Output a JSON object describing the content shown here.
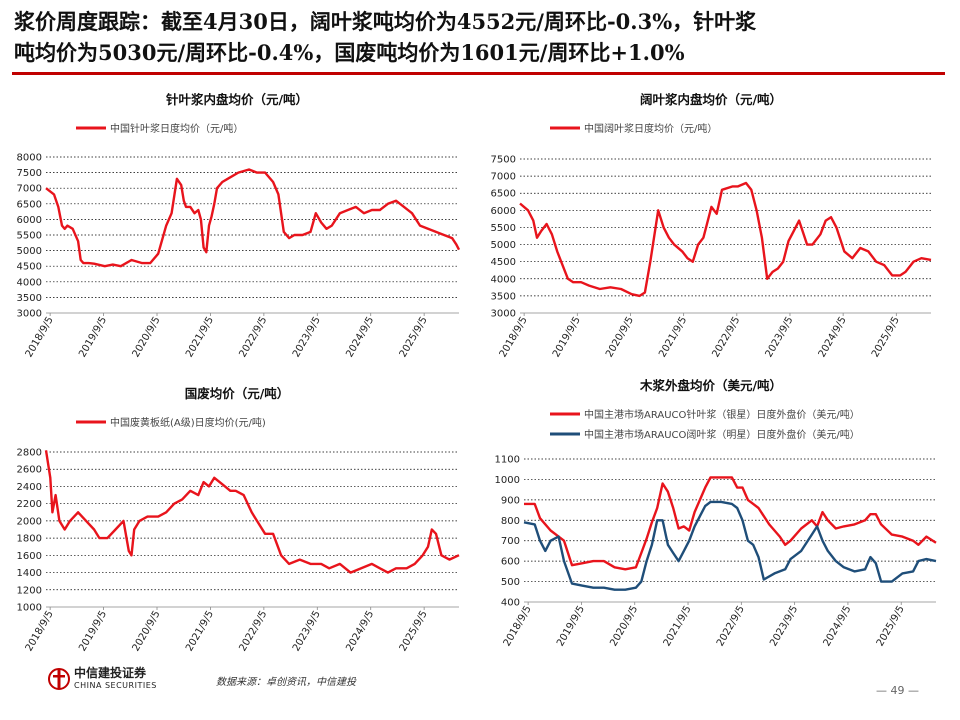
{
  "headline": {
    "line1": "浆价周度跟踪：截至4月30日，阔叶浆吨均价为4552元/周环比-0.3%，针叶浆",
    "line2": "吨均价为5030元/周环比-0.4%，国废吨均价为1601元/周环比+1.0%"
  },
  "footer": {
    "logo_cn": "中信建投证券",
    "logo_en": "CHINA SECURITIES",
    "source": "数据来源：卓创资讯，中信建投",
    "page": "— 49 —"
  },
  "colors": {
    "red": "#e8141c",
    "navy": "#1f4e79",
    "grid": "#000000",
    "accent": "#c00000"
  },
  "chart_data": [
    {
      "type": "line",
      "title": "针叶浆内盘均价（元/吨）",
      "xlabel": "",
      "ylabel": "",
      "ylim": [
        3000,
        8000
      ],
      "yticks": [
        3000,
        3500,
        4000,
        4500,
        5000,
        5500,
        6000,
        6500,
        7000,
        7500,
        8000
      ],
      "xticks": [
        "2018/9/5",
        "2019/9/5",
        "2020/9/5",
        "2021/9/5",
        "2022/9/5",
        "2023/9/5",
        "2024/9/5",
        "2025/9/5"
      ],
      "xlim": [
        2018.6,
        2026.33
      ],
      "grid": "horizontal dotted",
      "legend": "top-left",
      "series": [
        {
          "name": "中国针叶浆日度均价（元/吨）",
          "color": "#e8141c",
          "x": [
            2018.6,
            2018.75,
            2018.83,
            2018.9,
            2018.95,
            2019.0,
            2019.1,
            2019.2,
            2019.25,
            2019.3,
            2019.4,
            2019.5,
            2019.7,
            2019.85,
            2020.0,
            2020.2,
            2020.4,
            2020.55,
            2020.7,
            2020.85,
            2020.95,
            2021.05,
            2021.13,
            2021.18,
            2021.22,
            2021.3,
            2021.38,
            2021.45,
            2021.5,
            2021.55,
            2021.6,
            2021.65,
            2021.7,
            2021.75,
            2021.8,
            2021.9,
            2022.0,
            2022.2,
            2022.4,
            2022.55,
            2022.7,
            2022.85,
            2022.95,
            2023.05,
            2023.15,
            2023.25,
            2023.4,
            2023.55,
            2023.65,
            2023.75,
            2023.85,
            2023.95,
            2024.1,
            2024.25,
            2024.4,
            2024.55,
            2024.7,
            2024.85,
            2025.0,
            2025.15,
            2025.3,
            2025.45,
            2025.6,
            2025.75,
            2025.9,
            2026.05,
            2026.2,
            2026.28,
            2026.33
          ],
          "values": [
            7000,
            6800,
            6400,
            5800,
            5700,
            5800,
            5700,
            5300,
            4700,
            4600,
            4600,
            4580,
            4500,
            4550,
            4500,
            4700,
            4600,
            4600,
            4900,
            5800,
            6200,
            7300,
            7100,
            6600,
            6400,
            6400,
            6200,
            6300,
            6000,
            5100,
            4950,
            5800,
            6100,
            6500,
            7000,
            7200,
            7300,
            7500,
            7600,
            7500,
            7500,
            7200,
            6800,
            5600,
            5400,
            5500,
            5500,
            5600,
            6200,
            5900,
            5700,
            5800,
            6200,
            6300,
            6400,
            6200,
            6300,
            6300,
            6500,
            6600,
            6400,
            6200,
            5800,
            5700,
            5600,
            5500,
            5400,
            5200,
            5030
          ]
        }
      ]
    },
    {
      "type": "line",
      "title": "阔叶浆内盘均价（元/吨）",
      "xlabel": "",
      "ylabel": "",
      "ylim": [
        3000,
        7500
      ],
      "yticks": [
        3000,
        3500,
        4000,
        4500,
        5000,
        5500,
        6000,
        6500,
        7000,
        7500
      ],
      "xticks": [
        "2018/9/5",
        "2019/9/5",
        "2020/9/5",
        "2021/9/5",
        "2022/9/5",
        "2023/9/5",
        "2024/9/5",
        "2025/9/5"
      ],
      "xlim": [
        2018.6,
        2026.33
      ],
      "grid": "horizontal dotted",
      "legend": "top-left",
      "series": [
        {
          "name": "中国阔叶浆日度均价（元/吨）",
          "color": "#e8141c",
          "x": [
            2018.6,
            2018.75,
            2018.85,
            2018.92,
            2019.0,
            2019.1,
            2019.2,
            2019.3,
            2019.4,
            2019.5,
            2019.6,
            2019.75,
            2019.9,
            2020.1,
            2020.3,
            2020.5,
            2020.7,
            2020.85,
            2020.95,
            2021.05,
            2021.12,
            2021.2,
            2021.3,
            2021.4,
            2021.5,
            2021.65,
            2021.75,
            2021.85,
            2021.95,
            2022.05,
            2022.2,
            2022.3,
            2022.4,
            2022.6,
            2022.7,
            2022.85,
            2022.95,
            2023.05,
            2023.15,
            2023.25,
            2023.35,
            2023.45,
            2023.55,
            2023.65,
            2023.75,
            2023.85,
            2024.0,
            2024.1,
            2024.25,
            2024.35,
            2024.45,
            2024.55,
            2024.7,
            2024.85,
            2025.0,
            2025.15,
            2025.3,
            2025.45,
            2025.6,
            2025.75,
            2025.85,
            2026.0,
            2026.15,
            2026.33
          ],
          "values": [
            6200,
            6000,
            5700,
            5200,
            5400,
            5600,
            5300,
            4800,
            4400,
            4000,
            3900,
            3900,
            3800,
            3700,
            3750,
            3700,
            3550,
            3500,
            3600,
            4500,
            5200,
            6000,
            5500,
            5200,
            5000,
            4800,
            4600,
            4500,
            5000,
            5200,
            6100,
            5900,
            6600,
            6700,
            6700,
            6800,
            6600,
            6000,
            5200,
            4000,
            4200,
            4300,
            4500,
            5100,
            5400,
            5700,
            5000,
            5000,
            5300,
            5700,
            5800,
            5500,
            4800,
            4600,
            4900,
            4800,
            4500,
            4400,
            4100,
            4100,
            4200,
            4500,
            4600,
            4552
          ]
        }
      ]
    },
    {
      "type": "line",
      "title": "国废均价（元/吨）",
      "xlabel": "",
      "ylabel": "",
      "ylim": [
        1000,
        2800
      ],
      "yticks": [
        1000,
        1200,
        1400,
        1600,
        1800,
        2000,
        2200,
        2400,
        2600,
        2800
      ],
      "xticks": [
        "2018/9/5",
        "2019/9/5",
        "2020/9/5",
        "2021/9/5",
        "2022/9/5",
        "2023/9/5",
        "2024/9/5",
        "2025/9/5"
      ],
      "xlim": [
        2018.6,
        2026.33
      ],
      "grid": "horizontal dotted",
      "legend": "top-left",
      "series": [
        {
          "name": "中国废黄板纸(A级)日度均价(元/吨)",
          "color": "#e8141c",
          "x": [
            2018.6,
            2018.68,
            2018.72,
            2018.78,
            2018.85,
            2018.95,
            2019.05,
            2019.2,
            2019.35,
            2019.5,
            2019.6,
            2019.75,
            2019.9,
            2020.05,
            2020.15,
            2020.2,
            2020.25,
            2020.35,
            2020.5,
            2020.7,
            2020.85,
            2021.0,
            2021.15,
            2021.3,
            2021.45,
            2021.55,
            2021.65,
            2021.75,
            2021.85,
            2021.95,
            2022.05,
            2022.15,
            2022.3,
            2022.45,
            2022.55,
            2022.7,
            2022.85,
            2023.0,
            2023.15,
            2023.35,
            2023.55,
            2023.75,
            2023.9,
            2024.1,
            2024.3,
            2024.5,
            2024.7,
            2024.85,
            2025.0,
            2025.15,
            2025.35,
            2025.5,
            2025.65,
            2025.75,
            2025.82,
            2025.9,
            2026.0,
            2026.15,
            2026.33
          ],
          "values": [
            2820,
            2500,
            2100,
            2300,
            2000,
            1900,
            2000,
            2100,
            2000,
            1900,
            1800,
            1800,
            1900,
            2000,
            1650,
            1600,
            1900,
            2000,
            2050,
            2050,
            2100,
            2200,
            2250,
            2350,
            2300,
            2450,
            2400,
            2500,
            2450,
            2400,
            2350,
            2350,
            2300,
            2100,
            2000,
            1850,
            1850,
            1600,
            1500,
            1550,
            1500,
            1500,
            1450,
            1500,
            1400,
            1450,
            1500,
            1450,
            1400,
            1450,
            1450,
            1500,
            1600,
            1700,
            1900,
            1850,
            1600,
            1550,
            1601
          ]
        }
      ]
    },
    {
      "type": "line",
      "title": "木浆外盘均价（美元/吨）",
      "xlabel": "",
      "ylabel": "",
      "ylim": [
        400,
        1100
      ],
      "yticks": [
        400,
        500,
        600,
        700,
        800,
        900,
        1000,
        1100
      ],
      "xticks": [
        "2018/9/5",
        "2019/9/5",
        "2020/9/5",
        "2021/9/5",
        "2022/9/5",
        "2023/9/5",
        "2024/9/5",
        "2025/9/5"
      ],
      "xlim": [
        2018.6,
        2026.33
      ],
      "grid": "horizontal dotted",
      "legend": "top-left",
      "series": [
        {
          "name": "中国主港市场ARAUCO针叶浆（银星）日度外盘价（美元/吨）",
          "color": "#e8141c",
          "x": [
            2018.6,
            2018.8,
            2018.9,
            2019.1,
            2019.25,
            2019.35,
            2019.5,
            2019.7,
            2019.9,
            2020.1,
            2020.3,
            2020.5,
            2020.7,
            2020.8,
            2020.9,
            2021.0,
            2021.1,
            2021.2,
            2021.3,
            2021.4,
            2021.5,
            2021.6,
            2021.7,
            2021.8,
            2021.9,
            2022.0,
            2022.1,
            2022.3,
            2022.5,
            2022.6,
            2022.7,
            2022.8,
            2022.9,
            2023.0,
            2023.2,
            2023.4,
            2023.5,
            2023.6,
            2023.8,
            2024.0,
            2024.1,
            2024.2,
            2024.3,
            2024.45,
            2024.6,
            2024.8,
            2025.0,
            2025.1,
            2025.2,
            2025.3,
            2025.5,
            2025.7,
            2025.9,
            2026.0,
            2026.15,
            2026.33
          ],
          "values": [
            880,
            880,
            810,
            750,
            720,
            700,
            580,
            590,
            600,
            600,
            570,
            560,
            570,
            640,
            710,
            790,
            860,
            980,
            940,
            860,
            760,
            770,
            750,
            840,
            900,
            960,
            1010,
            1010,
            1010,
            960,
            960,
            900,
            880,
            860,
            780,
            720,
            680,
            700,
            760,
            800,
            770,
            840,
            800,
            760,
            770,
            780,
            800,
            830,
            830,
            780,
            730,
            720,
            700,
            680,
            720,
            690
          ]
        },
        {
          "name": "中国主港市场ARAUCO阔叶浆（明星）日度外盘价（美元/吨）",
          "color": "#1f4e79",
          "x": [
            2018.6,
            2018.8,
            2018.9,
            2019.0,
            2019.1,
            2019.25,
            2019.35,
            2019.5,
            2019.7,
            2019.9,
            2020.1,
            2020.3,
            2020.5,
            2020.7,
            2020.8,
            2020.9,
            2021.0,
            2021.1,
            2021.2,
            2021.3,
            2021.4,
            2021.5,
            2021.6,
            2021.7,
            2021.8,
            2021.9,
            2022.0,
            2022.1,
            2022.3,
            2022.5,
            2022.6,
            2022.7,
            2022.8,
            2022.9,
            2023.0,
            2023.1,
            2023.3,
            2023.5,
            2023.6,
            2023.8,
            2024.0,
            2024.1,
            2024.2,
            2024.3,
            2024.45,
            2024.6,
            2024.8,
            2025.0,
            2025.1,
            2025.2,
            2025.3,
            2025.5,
            2025.7,
            2025.9,
            2026.0,
            2026.15,
            2026.33
          ],
          "values": [
            790,
            780,
            700,
            650,
            700,
            720,
            600,
            490,
            480,
            470,
            470,
            460,
            460,
            470,
            500,
            600,
            680,
            800,
            800,
            680,
            640,
            600,
            650,
            700,
            770,
            820,
            870,
            890,
            890,
            880,
            860,
            800,
            700,
            680,
            620,
            510,
            540,
            560,
            610,
            650,
            730,
            770,
            700,
            650,
            600,
            570,
            550,
            560,
            620,
            590,
            500,
            500,
            540,
            550,
            600,
            610,
            600
          ]
        }
      ]
    }
  ]
}
